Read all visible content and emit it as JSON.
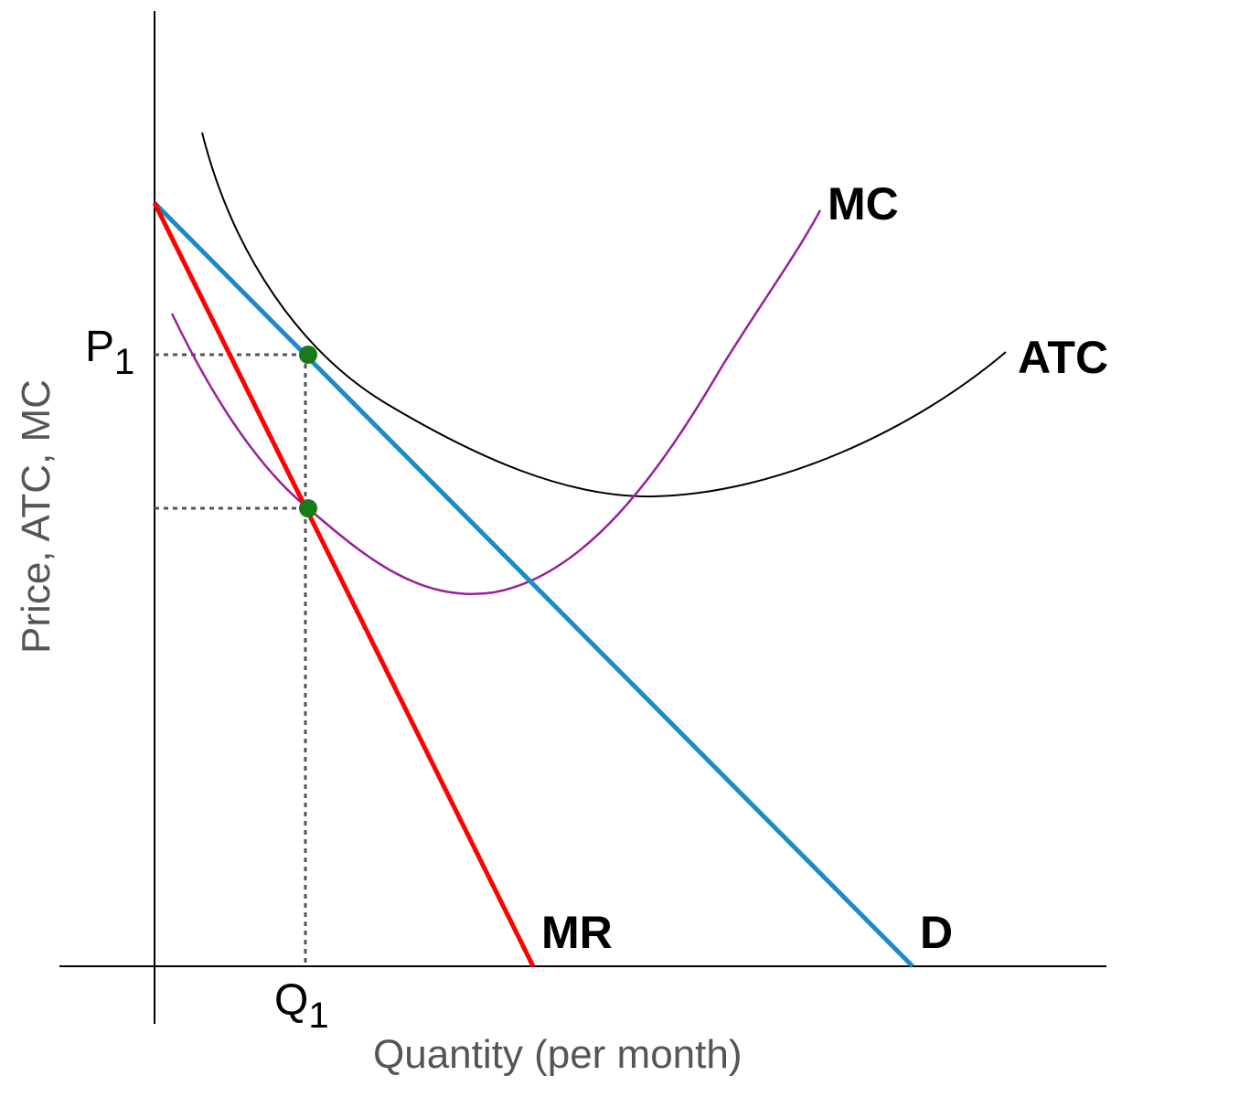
{
  "labels": {
    "mc": "MC",
    "atc": "ATC",
    "mr": "MR",
    "d": "D",
    "p": "P",
    "p_sub": "1",
    "q": "Q",
    "q_sub": "1"
  },
  "axes": {
    "xlabel": "Quantity (per month)",
    "ylabel": "Price, ATC, MC"
  },
  "colors": {
    "demand": "#1b8bc8",
    "marginal_revenue": "#ff0000",
    "marginal_cost": "#9b1f9b",
    "average_total_cost": "#000000",
    "points": "#1a7a1a",
    "guides": "#555555"
  }
}
